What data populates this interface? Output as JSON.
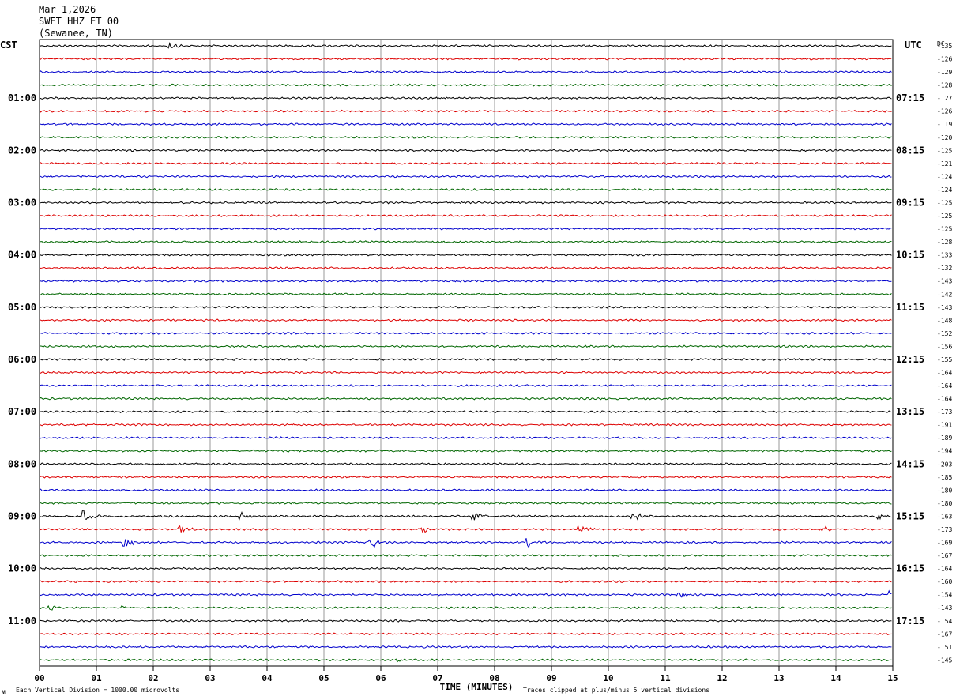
{
  "header": {
    "date": "Mar 1,2026",
    "station": "SWET HHZ ET 00",
    "location": "(Sewanee, TN)"
  },
  "left_axis_label": "CST",
  "right_axis_label": "UTC",
  "dc_label": "DC",
  "xlabel": "TIME (MINUTES)",
  "footer": {
    "scale_note": "Each Vertical Division = 1000.00 microvolts",
    "clip_note": "Traces clipped at plus/minus 5 vertical divisions",
    "corner_mark": "ᴍ"
  },
  "colors": [
    "#000000",
    "#dd0000",
    "#0000cc",
    "#006600"
  ],
  "chart_data": {
    "type": "line",
    "title": "SWET HHZ ET 00",
    "xlabel": "TIME (MINUTES)",
    "xlim": [
      0,
      15
    ],
    "x_ticks": [
      "00",
      "01",
      "02",
      "03",
      "04",
      "05",
      "06",
      "07",
      "08",
      "09",
      "10",
      "11",
      "12",
      "13",
      "14",
      "15"
    ],
    "rows_per_hour": 4,
    "minutes_per_row": 15,
    "grid": true,
    "cst_hour_labels": [
      "01:00",
      "02:00",
      "03:00",
      "04:00",
      "05:00",
      "06:00",
      "07:00",
      "08:00",
      "09:00",
      "10:00",
      "11:00"
    ],
    "utc_hour_labels": [
      "07:15",
      "08:15",
      "09:15",
      "10:15",
      "11:15",
      "12:15",
      "13:15",
      "14:15",
      "15:15",
      "16:15",
      "17:15"
    ],
    "trace_dc_offsets": [
      -135,
      -126,
      -129,
      -128,
      -127,
      -126,
      -119,
      -120,
      -125,
      -121,
      -124,
      -124,
      -125,
      -125,
      -125,
      -128,
      -133,
      -132,
      -143,
      -142,
      -143,
      -148,
      -152,
      -156,
      -155,
      -164,
      -164,
      -164,
      -173,
      -191,
      -189,
      -194,
      -203,
      -185,
      -180,
      -180,
      -163,
      -173,
      -169,
      -167,
      -164,
      -160,
      -154,
      -143,
      -154,
      -167,
      -151,
      -145
    ],
    "events": [
      {
        "row": 0,
        "minute": 2.3,
        "amp": 2.0
      },
      {
        "row": 36,
        "minute": 0.8,
        "amp": 3.5
      },
      {
        "row": 36,
        "minute": 3.55,
        "amp": 3.0
      },
      {
        "row": 36,
        "minute": 7.65,
        "amp": 3.0
      },
      {
        "row": 36,
        "minute": 10.45,
        "amp": 3.0
      },
      {
        "row": 36,
        "minute": 14.75,
        "amp": 3.0
      },
      {
        "row": 37,
        "minute": 2.45,
        "amp": 3.0
      },
      {
        "row": 37,
        "minute": 6.75,
        "amp": 3.0
      },
      {
        "row": 37,
        "minute": 9.5,
        "amp": 3.0
      },
      {
        "row": 37,
        "minute": 13.75,
        "amp": 3.0
      },
      {
        "row": 38,
        "minute": 1.5,
        "amp": 3.0
      },
      {
        "row": 38,
        "minute": 5.85,
        "amp": 4.0
      },
      {
        "row": 38,
        "minute": 8.6,
        "amp": 3.5
      },
      {
        "row": 42,
        "minute": 11.25,
        "amp": 1.5
      },
      {
        "row": 42,
        "minute": 14.95,
        "amp": 2.0
      },
      {
        "row": 43,
        "minute": 0.15,
        "amp": 2.0
      },
      {
        "row": 43,
        "minute": 1.45,
        "amp": 1.2
      },
      {
        "row": 47,
        "minute": 6.3,
        "amp": 1.5
      }
    ]
  }
}
